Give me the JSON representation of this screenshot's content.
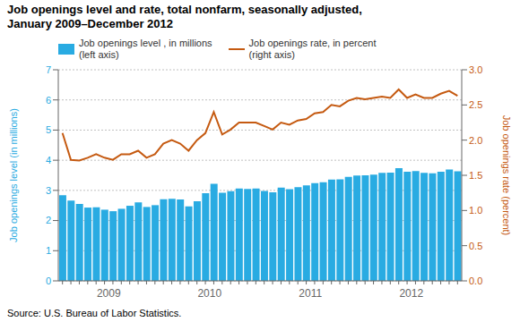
{
  "chart_data": {
    "type": "bar",
    "title": "Job openings level and rate, total nonfarm, seasonally adjusted,\nJanuary 2009–December 2012",
    "annotations": [
      "Source: U.S. Bureau of Labor Statistics."
    ],
    "y_label": "Job openings level (in millions)",
    "y2_label": "Job openings rate (percent)",
    "categories": [
      null,
      null,
      null,
      null,
      null,
      "2009",
      null,
      null,
      null,
      null,
      null,
      null,
      null,
      null,
      null,
      null,
      null,
      "2010",
      null,
      null,
      null,
      null,
      null,
      null,
      null,
      null,
      null,
      null,
      null,
      "2011",
      null,
      null,
      null,
      null,
      null,
      null,
      null,
      null,
      null,
      null,
      null,
      "2012",
      null,
      null,
      null,
      null,
      null,
      null
    ],
    "series": [
      {
        "name": "Job openings level , in millions\n(left axis)",
        "type": "bar",
        "color": "#29abe2",
        "values": [
          2.84,
          2.66,
          2.55,
          2.43,
          2.44,
          2.36,
          2.31,
          2.39,
          2.49,
          2.6,
          2.45,
          2.51,
          2.71,
          2.72,
          2.7,
          2.47,
          2.64,
          2.91,
          3.22,
          2.92,
          2.97,
          3.06,
          3.05,
          3.06,
          2.98,
          2.94,
          3.09,
          3.04,
          3.11,
          3.17,
          3.24,
          3.27,
          3.36,
          3.37,
          3.45,
          3.49,
          3.5,
          3.52,
          3.58,
          3.59,
          3.74,
          3.62,
          3.64,
          3.58,
          3.57,
          3.62,
          3.69,
          3.63
        ]
      },
      {
        "name": "Job openings rate, in percent\n(right axis)",
        "type": "line",
        "axis": "y2",
        "color": "#c55a11",
        "values": [
          2.1,
          1.72,
          1.71,
          1.75,
          1.8,
          1.75,
          1.72,
          1.8,
          1.8,
          1.85,
          1.75,
          1.8,
          1.95,
          2.0,
          1.95,
          1.85,
          2.0,
          2.1,
          2.4,
          2.08,
          2.15,
          2.25,
          2.25,
          2.25,
          2.2,
          2.15,
          2.25,
          2.22,
          2.28,
          2.3,
          2.38,
          2.4,
          2.5,
          2.48,
          2.56,
          2.6,
          2.58,
          2.6,
          2.62,
          2.6,
          2.72,
          2.6,
          2.65,
          2.6,
          2.6,
          2.66,
          2.7,
          2.63
        ]
      }
    ],
    "ylim": [
      0,
      7
    ],
    "yticks": [
      0,
      1,
      2,
      3,
      4,
      5,
      6,
      7
    ],
    "y2lim": [
      0,
      3.0
    ],
    "y2ticks": [
      {
        "value": 0.0,
        "label": "0.0"
      },
      0.5,
      {
        "value": 1.0,
        "label": "1.0"
      },
      1.5,
      {
        "value": 2.0,
        "label": "2.0"
      },
      2.5,
      {
        "value": 3.0,
        "label": "3.0"
      }
    ],
    "grid": true,
    "legend": "upper left"
  }
}
